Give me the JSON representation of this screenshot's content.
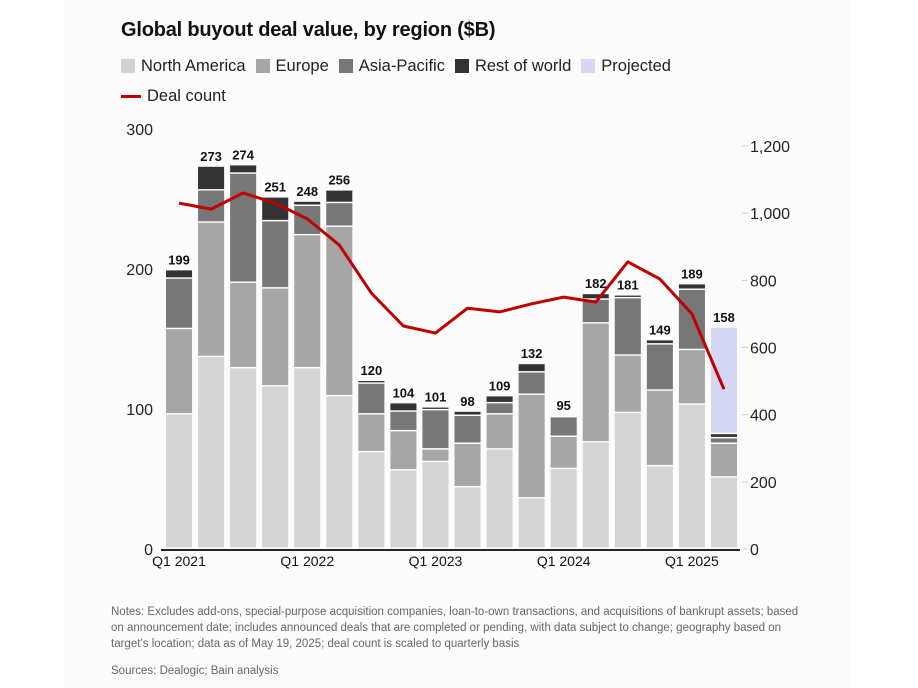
{
  "chart_data": {
    "type": "bar",
    "stacked": true,
    "title": "Global buyout deal value, by region ($B)",
    "xlabel": "",
    "ylabel": "",
    "ylim": [
      0,
      300
    ],
    "yticks": [
      0,
      100,
      200,
      300
    ],
    "y2lim": [
      0,
      1200
    ],
    "y2ticks": [
      "0",
      "200",
      "400",
      "600",
      "800",
      "1,000",
      "1,200"
    ],
    "y2tick_values": [
      0,
      200,
      400,
      600,
      800,
      1000,
      1200
    ],
    "grid": false,
    "legend_position": "top-left",
    "categories": [
      "Q1 2021",
      "Q2 2021",
      "Q3 2021",
      "Q4 2021",
      "Q1 2022",
      "Q2 2022",
      "Q3 2022",
      "Q4 2022",
      "Q1 2023",
      "Q2 2023",
      "Q3 2023",
      "Q4 2023",
      "Q1 2024",
      "Q2 2024",
      "Q3 2024",
      "Q4 2024",
      "Q1 2025",
      "Q2 2025"
    ],
    "x_tick_labels": [
      {
        "index": 0,
        "label": "Q1 2021"
      },
      {
        "index": 4,
        "label": "Q1 2022"
      },
      {
        "index": 8,
        "label": "Q1 2023"
      },
      {
        "index": 12,
        "label": "Q1 2024"
      },
      {
        "index": 16,
        "label": "Q1 2025"
      }
    ],
    "series": [
      {
        "name": "North America",
        "color": "#d4d4d4",
        "values": [
          96,
          137,
          129,
          116,
          129,
          109,
          69,
          56,
          62,
          44,
          71,
          36,
          57,
          76,
          97,
          59,
          103,
          51
        ]
      },
      {
        "name": "Europe",
        "color": "#a6a6a6",
        "values": [
          61,
          96,
          61,
          70,
          95,
          121,
          27,
          28,
          9,
          31,
          25,
          74,
          23,
          85,
          41,
          54,
          39,
          24
        ]
      },
      {
        "name": "Asia-Pacific",
        "color": "#777777",
        "values": [
          36,
          23,
          78,
          48,
          21,
          17,
          22,
          14,
          28,
          20,
          8,
          16,
          14,
          17,
          41,
          33,
          43,
          4
        ]
      },
      {
        "name": "Rest of world",
        "color": "#333333",
        "values": [
          6,
          17,
          6,
          17,
          3,
          9,
          2,
          6,
          2,
          3,
          5,
          6,
          1,
          4,
          2,
          3,
          4,
          3
        ]
      },
      {
        "name": "Projected",
        "color": "#d6d6f5",
        "values": [
          0,
          0,
          0,
          0,
          0,
          0,
          0,
          0,
          0,
          0,
          0,
          0,
          0,
          0,
          0,
          0,
          0,
          76
        ]
      }
    ],
    "totals": [
      "199",
      "273",
      "274",
      "251",
      "248",
      "256",
      "120",
      "104",
      "101",
      "98",
      "109",
      "132",
      "95",
      "182",
      "181",
      "149",
      "189",
      "158"
    ],
    "line_series": {
      "name": "Deal count",
      "color": "#c00000",
      "axis": "right",
      "values": [
        1030,
        1012,
        1060,
        1030,
        983,
        905,
        762,
        664,
        643,
        717,
        706,
        730,
        750,
        735,
        855,
        804,
        700,
        476
      ]
    }
  },
  "legend": {
    "items": [
      {
        "label": "North America",
        "color": "#d4d4d4"
      },
      {
        "label": "Europe",
        "color": "#a6a6a6"
      },
      {
        "label": "Asia-Pacific",
        "color": "#777777"
      },
      {
        "label": "Rest of world",
        "color": "#333333"
      },
      {
        "label": "Projected",
        "color": "#d6d6f5"
      }
    ],
    "line_label": "Deal count",
    "line_color": "#c00000"
  },
  "footer": {
    "notes": "Notes: Excludes add-ons, special-purpose acquisition companies, loan-to-own transactions, and acquisitions of bankrupt assets; based on announcement date; includes announced deals that are completed or pending, with data subject to change; geography based on target’s location; data as of May 19, 2025; deal count is scaled to quarterly basis",
    "sources": "Sources: Dealogic; Bain analysis"
  }
}
